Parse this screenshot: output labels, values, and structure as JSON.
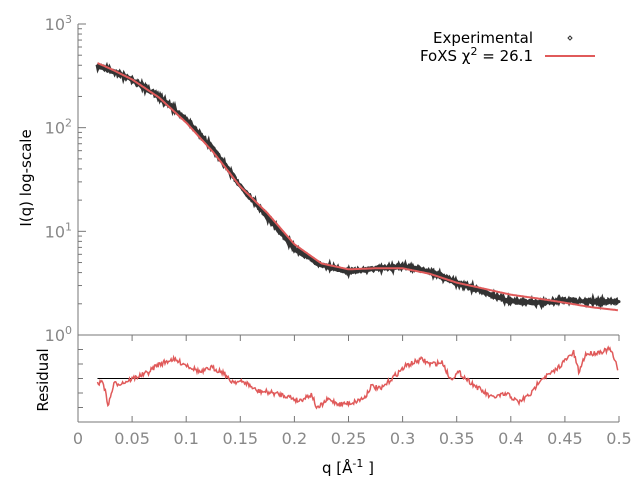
{
  "chart_data": [
    {
      "type": "line",
      "panel": "intensity",
      "ylabel": "I(q) log-scale",
      "yscale": "log",
      "ylim": [
        1,
        1000
      ],
      "xlim": [
        0,
        0.5
      ],
      "ytick_labels": [
        {
          "base": "10",
          "exp": "0"
        },
        {
          "base": "10",
          "exp": "1"
        },
        {
          "base": "10",
          "exp": "2"
        },
        {
          "base": "10",
          "exp": "3"
        }
      ],
      "ytick_values": [
        1,
        10,
        100,
        1000
      ],
      "legend_position": "top-right",
      "grid": false,
      "series": [
        {
          "name": "Experimental",
          "style": "points",
          "color": "#333333",
          "x": [
            0.018,
            0.03,
            0.05,
            0.075,
            0.1,
            0.125,
            0.15,
            0.175,
            0.2,
            0.225,
            0.25,
            0.275,
            0.3,
            0.325,
            0.35,
            0.375,
            0.4,
            0.425,
            0.45,
            0.475,
            0.5
          ],
          "y": [
            395,
            360,
            290,
            200,
            120,
            62,
            27.5,
            13.8,
            6.8,
            4.7,
            4.1,
            4.35,
            4.6,
            4.1,
            3.2,
            2.6,
            2.1,
            2.03,
            2.16,
            2.1,
            2.1
          ]
        },
        {
          "name_prefix": "FoXS χ",
          "name_sup": "2",
          "name_suffix": " = 26.1",
          "style": "line",
          "color": "#e05a5a",
          "x": [
            0.018,
            0.03,
            0.05,
            0.075,
            0.1,
            0.125,
            0.15,
            0.175,
            0.2,
            0.225,
            0.25,
            0.275,
            0.3,
            0.325,
            0.35,
            0.375,
            0.4,
            0.425,
            0.45,
            0.475,
            0.5
          ],
          "y": [
            420,
            370,
            292,
            195,
            112,
            58,
            27,
            15,
            7.5,
            4.9,
            4.3,
            4.4,
            4.4,
            3.9,
            3.2,
            2.8,
            2.45,
            2.25,
            2.05,
            1.85,
            1.73
          ]
        }
      ]
    },
    {
      "type": "line",
      "panel": "residual",
      "ylabel": "Residual",
      "xlabel_main": "q [Å",
      "xlabel_sup": "-1",
      "xlabel_end": " ]",
      "xlim": [
        0,
        0.5
      ],
      "ylim": [
        -3,
        3
      ],
      "xtick_labels": [
        "0",
        "0.05",
        "0.1",
        "0.15",
        "0.2",
        "0.25",
        "0.3",
        "0.35",
        "0.4",
        "0.45",
        "0.5"
      ],
      "xtick_values": [
        0,
        0.05,
        0.1,
        0.15,
        0.2,
        0.25,
        0.3,
        0.35,
        0.4,
        0.45,
        0.5
      ],
      "zero_line_color": "#000000",
      "series": [
        {
          "color": "#e05a5a",
          "x": [
            0.018,
            0.023,
            0.028,
            0.033,
            0.042,
            0.053,
            0.065,
            0.072,
            0.087,
            0.099,
            0.114,
            0.123,
            0.135,
            0.14,
            0.155,
            0.165,
            0.178,
            0.193,
            0.204,
            0.216,
            0.221,
            0.231,
            0.242,
            0.254,
            0.265,
            0.271,
            0.28,
            0.291,
            0.303,
            0.318,
            0.325,
            0.337,
            0.344,
            0.352,
            0.367,
            0.382,
            0.397,
            0.407,
            0.42,
            0.427,
            0.439,
            0.45,
            0.458,
            0.463,
            0.469,
            0.48,
            0.492,
            0.499
          ],
          "y": [
            -0.39,
            -0.16,
            -1.88,
            -0.39,
            -0.28,
            0.07,
            0.41,
            0.87,
            1.33,
            0.99,
            0.41,
            0.76,
            0.41,
            -0.16,
            -0.28,
            -0.85,
            -0.97,
            -1.2,
            -1.54,
            -1.08,
            -2.11,
            -1.43,
            -1.77,
            -1.66,
            -1.31,
            -0.51,
            -0.74,
            0.07,
            0.87,
            1.33,
            0.99,
            1.1,
            -0.04,
            0.41,
            -0.51,
            -1.31,
            -1.08,
            -1.66,
            -0.97,
            -0.04,
            0.41,
            1.22,
            1.79,
            0.41,
            1.68,
            1.79,
            2.02,
            0.64
          ]
        }
      ]
    }
  ]
}
